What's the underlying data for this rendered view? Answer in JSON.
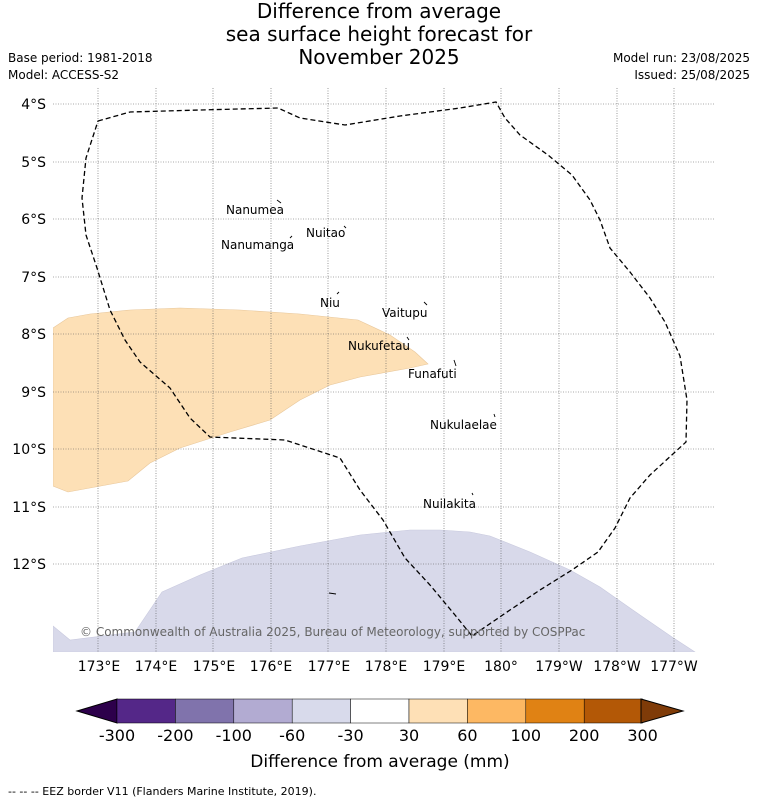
{
  "title": {
    "line1": "Difference from average",
    "line2": "sea surface height forecast for",
    "line3": "November 2025"
  },
  "meta": {
    "base_period": "Base period: 1981-2018",
    "model": "Model: ACCESS-S2",
    "model_run": "Model run: 23/08/2025",
    "issued": "Issued: 25/08/2025"
  },
  "map": {
    "lat_labels": [
      "4°S",
      "5°S",
      "6°S",
      "7°S",
      "8°S",
      "9°S",
      "10°S",
      "11°S",
      "12°S"
    ],
    "lon_labels": [
      "173°E",
      "174°E",
      "175°E",
      "176°E",
      "177°E",
      "178°E",
      "179°E",
      "180°",
      "179°W",
      "178°W",
      "177°W"
    ],
    "places": [
      {
        "name": "Nanumea"
      },
      {
        "name": "Nuitao"
      },
      {
        "name": "Nanumanga"
      },
      {
        "name": "Niu"
      },
      {
        "name": "Vaitupu"
      },
      {
        "name": "Nukufetau"
      },
      {
        "name": "Funafuti"
      },
      {
        "name": "Nukulaelae"
      },
      {
        "name": "Nuilakita"
      }
    ],
    "copyright": "© Commonwealth of Australia 2025, Bureau of Meteorology, supported by COSPPac",
    "colors": {
      "positive_30_60": "#fde0b6",
      "negative_30_60": "#d8d9ea",
      "gridline": "#555555",
      "eez_border": "#000000"
    }
  },
  "colorbar": {
    "ticks": [
      "-300",
      "-200",
      "-100",
      "-60",
      "-30",
      "30",
      "60",
      "100",
      "200",
      "300"
    ],
    "colors": [
      "#2d004b",
      "#542788",
      "#8073ac",
      "#b2abd2",
      "#d8daeb",
      "#ffffff",
      "#fee0b6",
      "#fdb863",
      "#e08214",
      "#b35806",
      "#7f3b08"
    ],
    "label": "Difference from average (mm)"
  },
  "footnote": "--  --  -- EEZ border V11 (Flanders Marine Institute, 2019)."
}
